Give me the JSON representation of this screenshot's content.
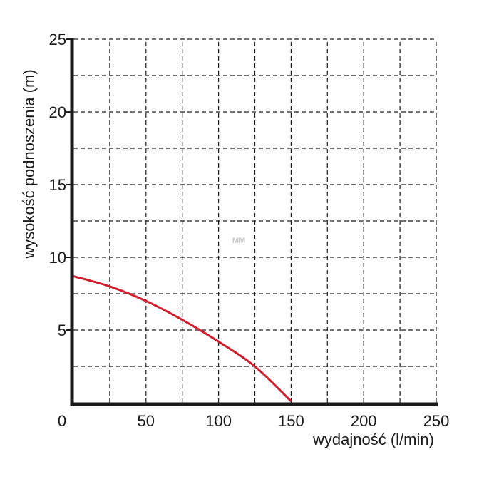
{
  "chart_data": {
    "type": "line",
    "xlabel": "wydajność (l/min)",
    "ylabel": "wysokość podnoszenia (m)",
    "xlim": [
      0,
      250
    ],
    "ylim": [
      0,
      25
    ],
    "x_ticks": [
      "0",
      "50",
      "100",
      "150",
      "200",
      "250"
    ],
    "y_ticks": [
      "5",
      "10",
      "15",
      "20",
      "25"
    ],
    "grid": true,
    "series": [
      {
        "x": [
          0,
          25,
          50,
          75,
          100,
          125,
          150
        ],
        "y": [
          8.7,
          8.0,
          7.0,
          5.7,
          4.2,
          2.5,
          0.1
        ],
        "color": "#d01e2e"
      }
    ]
  },
  "watermark": "MM"
}
